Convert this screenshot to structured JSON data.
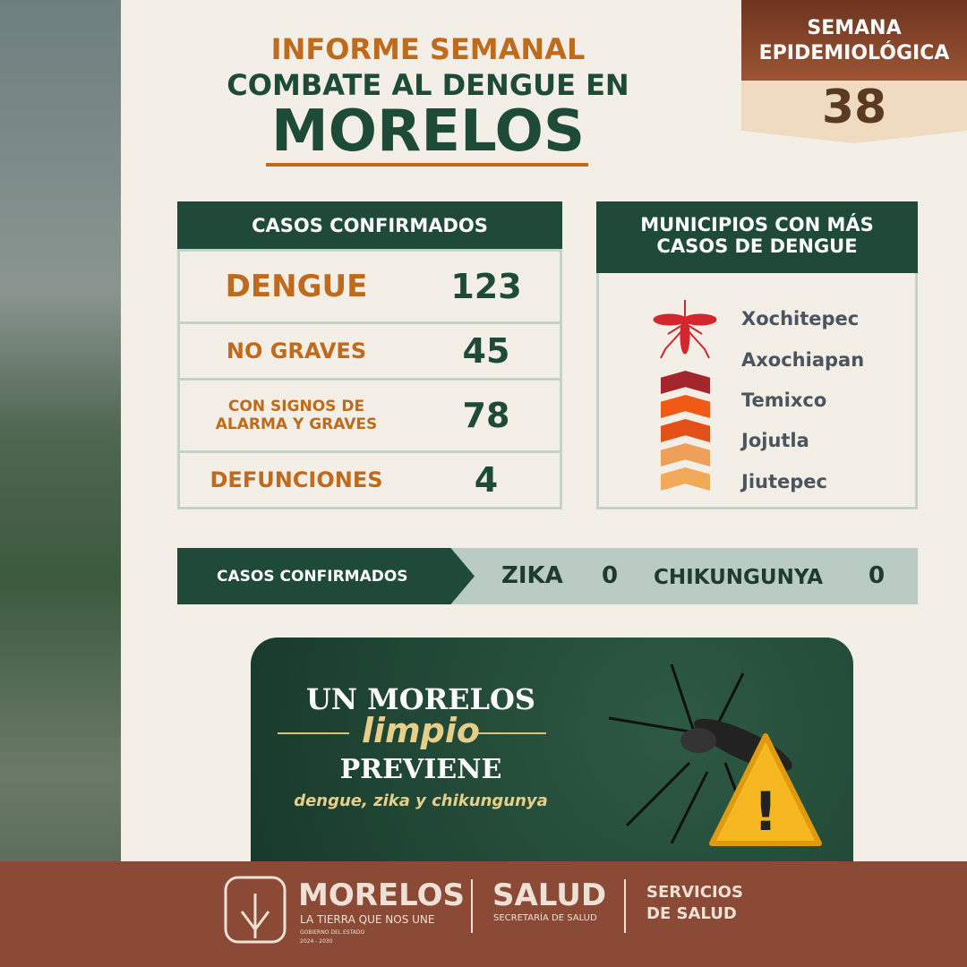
{
  "week": {
    "label": "SEMANA EPIDEMIOLÓGICA",
    "number": "38"
  },
  "title": {
    "line1": "INFORME SEMANAL",
    "line2": "COMBATE AL DENGUE EN",
    "line3": "MORELOS"
  },
  "cases": {
    "header": "CASOS CONFIRMADOS",
    "rows": [
      {
        "label": "DENGUE",
        "value": "123"
      },
      {
        "label": "NO GRAVES",
        "value": "45"
      },
      {
        "label": "CON SIGNOS DE ALARMA Y GRAVES",
        "value": "78"
      },
      {
        "label": "DEFUNCIONES",
        "value": "4"
      }
    ]
  },
  "municipios": {
    "header": "MUNICIPIOS CON MÁS CASOS DE DENGUE",
    "items": [
      "Xochitepec",
      "Axochiapan",
      "Temixco",
      "Jojutla",
      "Jiutepec"
    ],
    "colors": [
      "#a3262d",
      "#f05a14",
      "#e4501a",
      "#eea05a",
      "#f2aa5a"
    ]
  },
  "other": {
    "label": "CASOS CONFIRMADOS",
    "zika_label": "ZIKA",
    "zika": "0",
    "chik_label": "CHIKUNGUNYA",
    "chik": "0"
  },
  "promo": {
    "l1": "UN MORELOS",
    "l2": "limpio",
    "l3": "PREVIENE",
    "l4": "dengue, zika y chikungunya"
  },
  "footer": {
    "morelos": "MORELOS",
    "tagline": "LA TIERRA QUE NOS UNE",
    "gov": "GOBIERNO DEL ESTADO",
    "years": "2024 - 2030",
    "salud": "SALUD",
    "secretaria": "SECRETARÍA DE SALUD",
    "servicios1": "SERVICIOS",
    "servicios2": "DE SALUD"
  }
}
